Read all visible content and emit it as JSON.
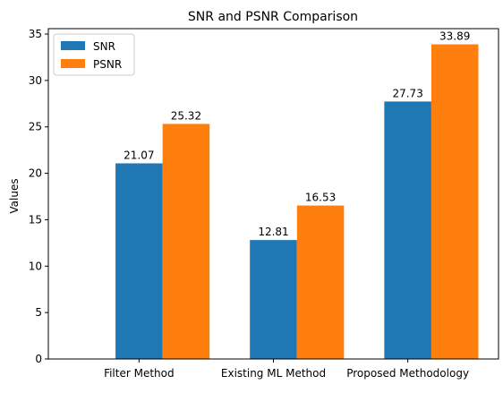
{
  "chart_data": {
    "type": "bar",
    "title": "SNR and PSNR Comparison",
    "xlabel": "",
    "ylabel": "Values",
    "categories": [
      "Filter Method",
      "Existing ML Method",
      "Proposed Methodology"
    ],
    "series": [
      {
        "name": "SNR",
        "values": [
          21.07,
          12.81,
          27.73
        ],
        "labels": [
          "21.07",
          "12.81",
          "27.73"
        ],
        "color": "#1f77b4"
      },
      {
        "name": "PSNR",
        "values": [
          25.32,
          16.53,
          33.89
        ],
        "labels": [
          "25.32",
          "16.53",
          "33.89"
        ],
        "color": "#ff7f0e"
      }
    ],
    "ylim": [
      0,
      35.58
    ],
    "yticks": [
      0,
      5,
      10,
      15,
      20,
      25,
      30,
      35
    ],
    "ytick_labels": [
      "0",
      "5",
      "10",
      "15",
      "20",
      "25",
      "30",
      "35"
    ],
    "grid": false,
    "legend": "top-left"
  }
}
